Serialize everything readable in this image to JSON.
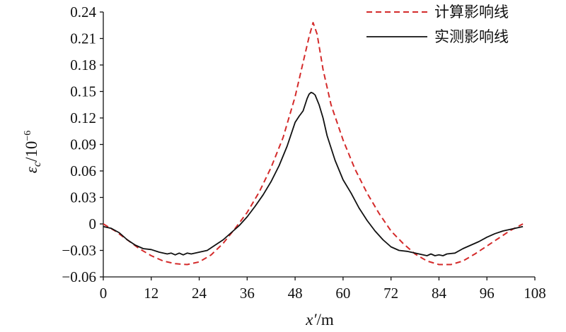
{
  "chart_data": {
    "type": "line",
    "xlabel": {
      "var": "x′",
      "unit": "/m"
    },
    "ylabel": {
      "var": "ε",
      "sub": "c",
      "unit": "/10",
      "exp": "−6"
    },
    "xlim": [
      0,
      108
    ],
    "ylim": [
      -0.06,
      0.24
    ],
    "xticks": [
      0,
      12,
      24,
      36,
      48,
      60,
      72,
      84,
      96,
      108
    ],
    "yticks": [
      -0.06,
      -0.03,
      0,
      0.03,
      0.06,
      0.09,
      0.12,
      0.15,
      0.18,
      0.21,
      0.24
    ],
    "ytick_labels": [
      "−0.06",
      "−0.03",
      "0",
      "0.03",
      "0.06",
      "0.09",
      "0.12",
      "0.15",
      "0.18",
      "0.21",
      "0.24"
    ],
    "xtick_labels": [
      "0",
      "12",
      "24",
      "36",
      "48",
      "60",
      "72",
      "84",
      "96",
      "108"
    ],
    "grid": false,
    "legend_position": "top-right",
    "series": [
      {
        "name": "计算影响线",
        "color": "#d42a2a",
        "style": "dashed",
        "x": [
          0,
          3,
          6,
          9,
          12,
          15,
          18,
          21,
          24,
          27,
          30,
          33,
          36,
          39,
          42,
          45,
          48,
          50,
          51.5,
          52.5,
          53.5,
          55,
          57,
          60,
          63,
          66,
          69,
          72,
          75,
          78,
          81,
          84,
          87,
          90,
          93,
          96,
          99,
          102,
          105
        ],
        "y": [
          0,
          -0.008,
          -0.018,
          -0.028,
          -0.036,
          -0.042,
          -0.045,
          -0.046,
          -0.043,
          -0.035,
          -0.022,
          -0.005,
          0.013,
          0.036,
          0.064,
          0.098,
          0.144,
          0.183,
          0.212,
          0.228,
          0.215,
          0.175,
          0.135,
          0.095,
          0.062,
          0.035,
          0.012,
          -0.008,
          -0.022,
          -0.034,
          -0.042,
          -0.046,
          -0.046,
          -0.042,
          -0.034,
          -0.025,
          -0.016,
          -0.007,
          0
        ]
      },
      {
        "name": "实测影响线",
        "color": "#111111",
        "style": "solid",
        "x": [
          0,
          2,
          4,
          6,
          8,
          10,
          12,
          14,
          16,
          17,
          18,
          19,
          20,
          21,
          22,
          24,
          26,
          28,
          30,
          32,
          34,
          36,
          38,
          40,
          42,
          44,
          46,
          48,
          49,
          50,
          51,
          51.5,
          52,
          52.5,
          53,
          54,
          55,
          56,
          58,
          60,
          62,
          64,
          66,
          68,
          70,
          72,
          74,
          76,
          78,
          80,
          81,
          82,
          83,
          84,
          85,
          86,
          88,
          90,
          92,
          94,
          96,
          98,
          100,
          102,
          104,
          105
        ],
        "y": [
          -0.003,
          -0.005,
          -0.01,
          -0.018,
          -0.024,
          -0.028,
          -0.029,
          -0.032,
          -0.034,
          -0.033,
          -0.035,
          -0.033,
          -0.035,
          -0.033,
          -0.034,
          -0.032,
          -0.03,
          -0.024,
          -0.018,
          -0.01,
          -0.002,
          0.008,
          0.02,
          0.033,
          0.048,
          0.066,
          0.088,
          0.115,
          0.122,
          0.128,
          0.142,
          0.147,
          0.149,
          0.148,
          0.146,
          0.135,
          0.12,
          0.1,
          0.072,
          0.05,
          0.035,
          0.018,
          0.004,
          -0.008,
          -0.018,
          -0.026,
          -0.03,
          -0.031,
          -0.033,
          -0.035,
          -0.036,
          -0.034,
          -0.036,
          -0.035,
          -0.036,
          -0.034,
          -0.033,
          -0.028,
          -0.024,
          -0.02,
          -0.015,
          -0.011,
          -0.008,
          -0.006,
          -0.004,
          -0.003
        ]
      }
    ]
  }
}
